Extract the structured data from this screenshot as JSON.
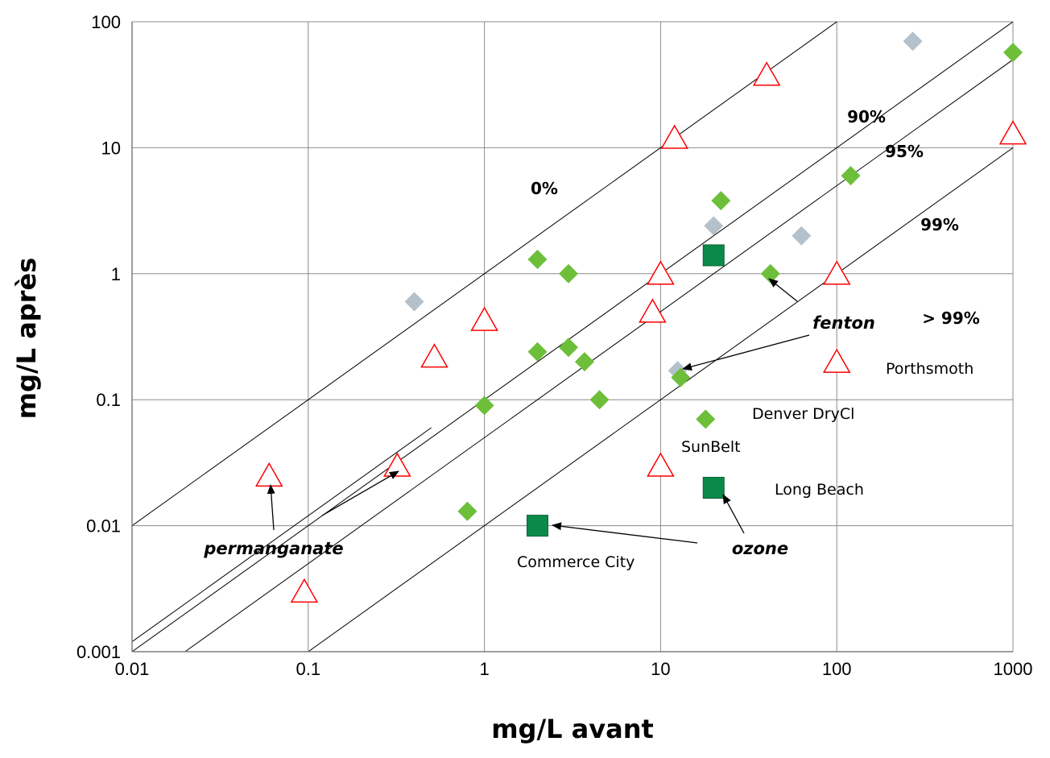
{
  "chart_data": {
    "type": "scatter",
    "x_scale": "log",
    "y_scale": "log",
    "xlim": [
      0.01,
      1000
    ],
    "ylim": [
      0.001,
      100
    ],
    "grid": true,
    "xlabel": "mg/L avant",
    "ylabel": "mg/L après",
    "x_ticks": [
      "0.01",
      "0.1",
      "1",
      "10",
      "100",
      "1000"
    ],
    "y_ticks": [
      "0.001",
      "0.01",
      "0.1",
      "1",
      "10",
      "100"
    ],
    "reference_lines": [
      {
        "label": "0%",
        "ratio": 1
      },
      {
        "label": "90%",
        "ratio": 0.1
      },
      {
        "label": "95%",
        "ratio": 0.05
      },
      {
        "label": "99%",
        "ratio": 0.01
      },
      {
        "label": "> 99%"
      }
    ],
    "series": [
      {
        "name": "Porthsmoth",
        "marker": "triangle",
        "color": "#ff0000",
        "points": [
          [
            0.06,
            0.025
          ],
          [
            0.095,
            0.003
          ],
          [
            0.32,
            0.03
          ],
          [
            0.52,
            0.22
          ],
          [
            1,
            0.43
          ],
          [
            9,
            0.5
          ],
          [
            10,
            0.03
          ],
          [
            10,
            1.0
          ],
          [
            12,
            12
          ],
          [
            40,
            38
          ],
          [
            100,
            1.0
          ],
          [
            100,
            0.2
          ],
          [
            1000,
            13
          ]
        ]
      },
      {
        "name": "Denver DryCl",
        "marker": "diamond",
        "color": "#b4c1cb",
        "points": [
          [
            0.4,
            0.6
          ],
          [
            12.5,
            0.17
          ],
          [
            20,
            2.4
          ],
          [
            63,
            2.0
          ],
          [
            270,
            70
          ]
        ]
      },
      {
        "name": "SunBelt",
        "marker": "diamond",
        "color": "#6dbf3a",
        "points": [
          [
            0.8,
            0.013
          ],
          [
            1,
            0.09
          ],
          [
            2,
            1.3
          ],
          [
            2,
            0.24
          ],
          [
            3,
            1.0
          ],
          [
            3,
            0.26
          ],
          [
            3.7,
            0.2
          ],
          [
            4.5,
            0.1
          ],
          [
            13,
            0.15
          ],
          [
            18,
            0.07
          ],
          [
            22,
            3.8
          ],
          [
            42,
            1.0
          ],
          [
            120,
            6.0
          ],
          [
            1000,
            57
          ]
        ]
      },
      {
        "name": "Long Beach",
        "marker": "square",
        "color": "#0a8a4a",
        "points": [
          [
            20,
            1.4
          ],
          [
            20,
            0.02
          ]
        ]
      },
      {
        "name": "Commerce City",
        "marker": "square",
        "color": "#0a8a4a",
        "points": [
          [
            2,
            0.01
          ]
        ]
      }
    ],
    "annotations": [
      "fenton",
      "ozone",
      "permanganate"
    ]
  }
}
